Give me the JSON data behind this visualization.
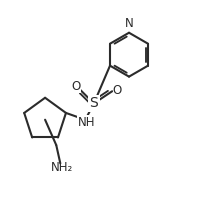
{
  "bg": "#ffffff",
  "bc": "#2b2b2b",
  "lw": 1.5,
  "figsize": [
    2.06,
    2.13
  ],
  "dpi": 100,
  "xlim": [
    0.0,
    1.0
  ],
  "ylim": [
    0.0,
    1.0
  ]
}
